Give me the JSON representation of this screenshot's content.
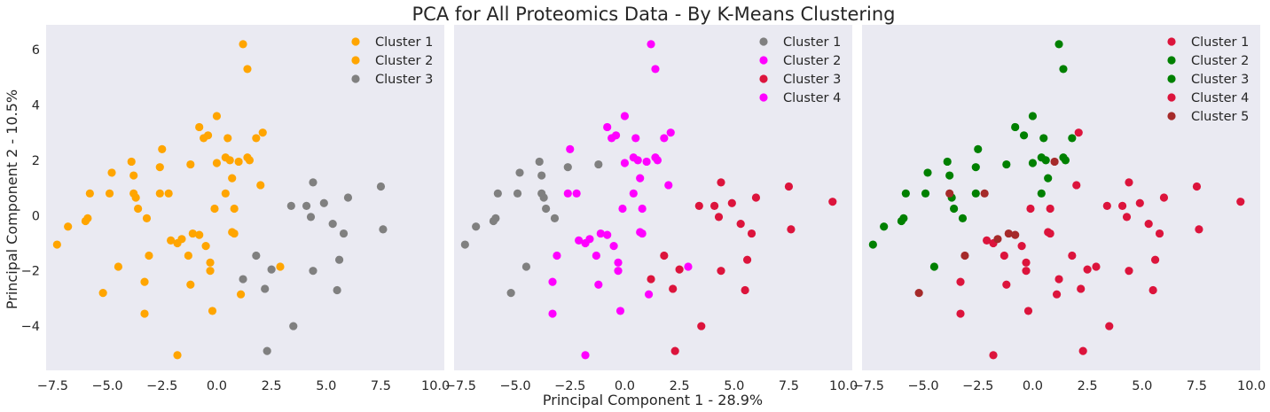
{
  "title": "PCA for All Proteomics Data - By K-Means Clustering",
  "xlabel": "Principal Component 1 - 28.9%",
  "ylabel": "Principal Component 2 - 10.5%",
  "chart_data": [
    {
      "type": "scatter",
      "xlim": [
        -7.8,
        10.4
      ],
      "ylim": [
        -5.6,
        6.9
      ],
      "xticks": [
        -7.5,
        -5.0,
        -2.5,
        0.0,
        2.5,
        5.0,
        7.5,
        10.0
      ],
      "yticks": [
        -4,
        -2,
        0,
        2,
        4,
        6
      ],
      "grid": false,
      "legend": "top-right",
      "series": [
        {
          "name": "Cluster 1",
          "color": "#ffa500",
          "points": []
        },
        {
          "name": "Cluster 2",
          "color": "#ffa500",
          "points": [
            [
              1.2,
              6.2
            ],
            [
              1.4,
              5.3
            ],
            [
              0.0,
              3.6
            ],
            [
              -0.8,
              3.2
            ],
            [
              -0.4,
              2.9
            ],
            [
              -0.6,
              2.8
            ],
            [
              0.5,
              2.8
            ],
            [
              2.1,
              3.0
            ],
            [
              1.8,
              2.8
            ],
            [
              -2.5,
              2.4
            ],
            [
              0.4,
              2.1
            ],
            [
              0.6,
              2.0
            ],
            [
              1.0,
              1.95
            ],
            [
              1.4,
              2.1
            ],
            [
              1.5,
              2.0
            ],
            [
              -3.9,
              1.95
            ],
            [
              -2.6,
              1.75
            ],
            [
              -1.2,
              1.85
            ],
            [
              0.0,
              1.9
            ],
            [
              -4.8,
              1.55
            ],
            [
              -3.8,
              1.45
            ],
            [
              0.7,
              1.35
            ],
            [
              -5.8,
              0.8
            ],
            [
              -4.9,
              0.8
            ],
            [
              -3.8,
              0.8
            ],
            [
              -3.7,
              0.65
            ],
            [
              -2.6,
              0.8
            ],
            [
              -2.2,
              0.8
            ],
            [
              0.4,
              0.8
            ],
            [
              2.0,
              1.1
            ],
            [
              -3.6,
              0.25
            ],
            [
              -0.1,
              0.25
            ],
            [
              0.8,
              0.25
            ],
            [
              -3.2,
              -0.1
            ],
            [
              -6.0,
              -0.2
            ],
            [
              -5.9,
              -0.1
            ],
            [
              -6.8,
              -0.4
            ],
            [
              -7.3,
              -1.05
            ],
            [
              0.7,
              -0.6
            ],
            [
              0.8,
              -0.65
            ],
            [
              -2.1,
              -0.9
            ],
            [
              -1.8,
              -1.0
            ],
            [
              -1.6,
              -0.85
            ],
            [
              -1.1,
              -0.65
            ],
            [
              -0.8,
              -0.7
            ],
            [
              -0.5,
              -1.1
            ],
            [
              -3.1,
              -1.45
            ],
            [
              -1.3,
              -1.45
            ],
            [
              -0.3,
              -1.7
            ],
            [
              -0.3,
              -2.0
            ],
            [
              -4.5,
              -1.85
            ],
            [
              2.9,
              -1.85
            ],
            [
              -5.2,
              -2.8
            ],
            [
              -3.3,
              -2.4
            ],
            [
              -1.2,
              -2.5
            ],
            [
              1.1,
              -2.85
            ],
            [
              -3.3,
              -3.55
            ],
            [
              -0.2,
              -3.45
            ],
            [
              -1.8,
              -5.05
            ]
          ]
        },
        {
          "name": "Cluster 3",
          "color": "#808080",
          "points": [
            [
              4.4,
              1.2
            ],
            [
              7.5,
              1.05
            ],
            [
              6.0,
              0.65
            ],
            [
              4.9,
              0.45
            ],
            [
              3.4,
              0.35
            ],
            [
              4.1,
              0.35
            ],
            [
              4.3,
              -0.05
            ],
            [
              5.3,
              -0.3
            ],
            [
              5.8,
              -0.65
            ],
            [
              7.6,
              -0.5
            ],
            [
              1.8,
              -1.45
            ],
            [
              5.6,
              -1.6
            ],
            [
              2.5,
              -1.95
            ],
            [
              4.4,
              -2.0
            ],
            [
              1.2,
              -2.3
            ],
            [
              2.2,
              -2.65
            ],
            [
              5.5,
              -2.7
            ],
            [
              3.5,
              -4.0
            ],
            [
              2.3,
              -4.9
            ]
          ]
        }
      ]
    },
    {
      "type": "scatter",
      "xlim": [
        -7.8,
        10.4
      ],
      "ylim": [
        -5.6,
        6.9
      ],
      "xticks": [
        -7.5,
        -5.0,
        -2.5,
        0.0,
        2.5,
        5.0,
        7.5,
        10.0
      ],
      "yticks": [
        -4,
        -2,
        0,
        2,
        4,
        6
      ],
      "grid": false,
      "legend": "top-right",
      "series": [
        {
          "name": "Cluster 1",
          "color": "#808080",
          "points": [
            [
              -3.9,
              1.95
            ],
            [
              -2.6,
              1.75
            ],
            [
              -1.2,
              1.85
            ],
            [
              -4.8,
              1.55
            ],
            [
              -3.8,
              1.45
            ],
            [
              -5.8,
              0.8
            ],
            [
              -4.9,
              0.8
            ],
            [
              -3.8,
              0.8
            ],
            [
              -3.7,
              0.65
            ],
            [
              -3.6,
              0.25
            ],
            [
              -3.2,
              -0.1
            ],
            [
              -6.0,
              -0.2
            ],
            [
              -5.9,
              -0.1
            ],
            [
              -6.8,
              -0.4
            ],
            [
              -7.3,
              -1.05
            ],
            [
              -4.5,
              -1.85
            ],
            [
              -5.2,
              -2.8
            ]
          ]
        },
        {
          "name": "Cluster 2",
          "color": "#ff00ff",
          "points": [
            [
              1.2,
              6.2
            ],
            [
              1.4,
              5.3
            ],
            [
              0.0,
              3.6
            ],
            [
              -0.8,
              3.2
            ],
            [
              -0.4,
              2.9
            ],
            [
              -0.6,
              2.8
            ],
            [
              0.5,
              2.8
            ],
            [
              2.1,
              3.0
            ],
            [
              1.8,
              2.8
            ],
            [
              -2.5,
              2.4
            ],
            [
              0.4,
              2.1
            ],
            [
              0.6,
              2.0
            ],
            [
              1.0,
              1.95
            ],
            [
              1.4,
              2.1
            ],
            [
              1.5,
              2.0
            ],
            [
              0.0,
              1.9
            ],
            [
              0.7,
              1.35
            ],
            [
              -2.6,
              0.8
            ],
            [
              -2.2,
              0.8
            ],
            [
              0.4,
              0.8
            ],
            [
              2.0,
              1.1
            ],
            [
              -0.1,
              0.25
            ],
            [
              0.8,
              0.25
            ],
            [
              0.7,
              -0.6
            ],
            [
              0.8,
              -0.65
            ],
            [
              -2.1,
              -0.9
            ],
            [
              -1.8,
              -1.0
            ],
            [
              -1.6,
              -0.85
            ],
            [
              -1.1,
              -0.65
            ],
            [
              -0.8,
              -0.7
            ],
            [
              -0.5,
              -1.1
            ],
            [
              -3.1,
              -1.45
            ],
            [
              -1.3,
              -1.45
            ],
            [
              -0.3,
              -1.7
            ],
            [
              -0.3,
              -2.0
            ],
            [
              2.9,
              -1.85
            ],
            [
              -3.3,
              -2.4
            ],
            [
              -1.2,
              -2.5
            ],
            [
              1.1,
              -2.85
            ],
            [
              -3.3,
              -3.55
            ],
            [
              -0.2,
              -3.45
            ],
            [
              -1.8,
              -5.05
            ]
          ]
        },
        {
          "name": "Cluster 3",
          "color": "#dc143c",
          "points": [
            [
              4.4,
              1.2
            ],
            [
              7.5,
              1.05
            ],
            [
              6.0,
              0.65
            ],
            [
              4.9,
              0.45
            ],
            [
              3.4,
              0.35
            ],
            [
              4.1,
              0.35
            ],
            [
              4.3,
              -0.05
            ],
            [
              5.3,
              -0.3
            ],
            [
              5.8,
              -0.65
            ],
            [
              7.6,
              -0.5
            ],
            [
              1.8,
              -1.45
            ],
            [
              5.6,
              -1.6
            ],
            [
              2.5,
              -1.95
            ],
            [
              4.4,
              -2.0
            ],
            [
              1.2,
              -2.3
            ],
            [
              2.2,
              -2.65
            ],
            [
              5.5,
              -2.7
            ],
            [
              3.5,
              -4.0
            ],
            [
              2.3,
              -4.9
            ],
            [
              9.5,
              0.5
            ]
          ]
        },
        {
          "name": "Cluster 4",
          "color": "#ff00ff",
          "points": []
        }
      ]
    },
    {
      "type": "scatter",
      "xlim": [
        -7.8,
        10.4
      ],
      "ylim": [
        -5.6,
        6.9
      ],
      "xticks": [
        -7.5,
        -5.0,
        -2.5,
        0.0,
        2.5,
        5.0,
        7.5,
        10.0
      ],
      "yticks": [
        -4,
        -2,
        0,
        2,
        4,
        6
      ],
      "grid": false,
      "legend": "top-right",
      "series": [
        {
          "name": "Cluster 1",
          "color": "#dc143c",
          "points": []
        },
        {
          "name": "Cluster 2",
          "color": "#008000",
          "points": [
            [
              1.2,
              6.2
            ],
            [
              1.4,
              5.3
            ],
            [
              0.0,
              3.6
            ],
            [
              -0.8,
              3.2
            ],
            [
              -0.4,
              2.9
            ],
            [
              0.5,
              2.8
            ],
            [
              1.8,
              2.8
            ],
            [
              -2.5,
              2.4
            ],
            [
              0.4,
              2.1
            ],
            [
              0.6,
              2.0
            ],
            [
              1.4,
              2.1
            ],
            [
              1.5,
              2.0
            ],
            [
              -3.9,
              1.95
            ],
            [
              -2.6,
              1.75
            ],
            [
              -1.2,
              1.85
            ],
            [
              0.0,
              1.9
            ],
            [
              -4.8,
              1.55
            ],
            [
              -3.8,
              1.45
            ],
            [
              0.7,
              1.35
            ],
            [
              -5.8,
              0.8
            ],
            [
              -4.9,
              0.8
            ],
            [
              -2.6,
              0.8
            ],
            [
              0.4,
              0.8
            ],
            [
              -3.7,
              0.65
            ],
            [
              -3.6,
              0.25
            ],
            [
              -3.2,
              -0.1
            ],
            [
              -6.0,
              -0.2
            ],
            [
              -5.9,
              -0.1
            ],
            [
              -6.8,
              -0.4
            ],
            [
              -7.3,
              -1.05
            ],
            [
              -4.5,
              -1.85
            ]
          ]
        },
        {
          "name": "Cluster 3",
          "color": "#008000",
          "points": []
        },
        {
          "name": "Cluster 4",
          "color": "#dc143c",
          "points": [
            [
              2.1,
              3.0
            ],
            [
              4.4,
              1.2
            ],
            [
              7.5,
              1.05
            ],
            [
              2.0,
              1.1
            ],
            [
              6.0,
              0.65
            ],
            [
              4.9,
              0.45
            ],
            [
              3.4,
              0.35
            ],
            [
              4.1,
              0.35
            ],
            [
              4.3,
              -0.05
            ],
            [
              5.3,
              -0.3
            ],
            [
              5.8,
              -0.65
            ],
            [
              7.6,
              -0.5
            ],
            [
              9.5,
              0.5
            ],
            [
              -0.1,
              0.25
            ],
            [
              0.8,
              0.25
            ],
            [
              0.7,
              -0.6
            ],
            [
              0.8,
              -0.65
            ],
            [
              -2.1,
              -0.9
            ],
            [
              -1.8,
              -1.0
            ],
            [
              -0.5,
              -1.1
            ],
            [
              -1.3,
              -1.45
            ],
            [
              -0.3,
              -1.7
            ],
            [
              -0.3,
              -2.0
            ],
            [
              1.8,
              -1.45
            ],
            [
              5.6,
              -1.6
            ],
            [
              2.5,
              -1.95
            ],
            [
              2.9,
              -1.85
            ],
            [
              4.4,
              -2.0
            ],
            [
              1.2,
              -2.3
            ],
            [
              2.2,
              -2.65
            ],
            [
              5.5,
              -2.7
            ],
            [
              -3.3,
              -2.4
            ],
            [
              -1.2,
              -2.5
            ],
            [
              1.1,
              -2.85
            ],
            [
              3.5,
              -4.0
            ],
            [
              2.3,
              -4.9
            ],
            [
              -3.3,
              -3.55
            ],
            [
              -0.2,
              -3.45
            ],
            [
              -1.8,
              -5.05
            ]
          ]
        },
        {
          "name": "Cluster 5",
          "color": "#a52a2a",
          "points": [
            [
              1.0,
              1.95
            ],
            [
              -3.8,
              0.8
            ],
            [
              -2.2,
              0.8
            ],
            [
              -1.6,
              -0.85
            ],
            [
              -1.1,
              -0.65
            ],
            [
              -0.8,
              -0.7
            ],
            [
              -3.1,
              -1.45
            ],
            [
              -5.2,
              -2.8
            ]
          ]
        }
      ]
    }
  ]
}
